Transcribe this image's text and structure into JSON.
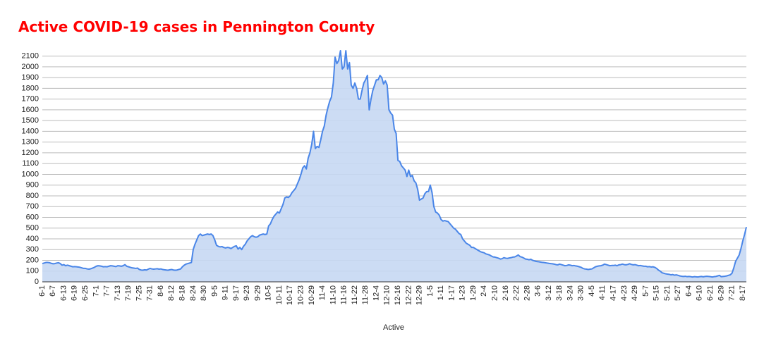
{
  "chart_data": {
    "type": "area",
    "title": "Active COVID-19 cases in Pennington County",
    "x_label": "Active",
    "color": "#4a86e8",
    "fill": "#c6d8f3",
    "grid": true,
    "ylim": [
      0,
      2150
    ],
    "yticks": [
      0,
      100,
      200,
      300,
      400,
      500,
      600,
      700,
      800,
      900,
      1000,
      1100,
      1200,
      1300,
      1400,
      1500,
      1600,
      1700,
      1800,
      1900,
      2000,
      2100
    ],
    "categories": [
      "6-1",
      null,
      null,
      null,
      null,
      null,
      "6-7",
      null,
      null,
      null,
      null,
      null,
      "6-13",
      null,
      null,
      null,
      null,
      null,
      "6-19",
      null,
      null,
      null,
      null,
      null,
      "6-25",
      null,
      null,
      null,
      null,
      null,
      "7-1",
      null,
      null,
      null,
      null,
      null,
      "7-7",
      null,
      null,
      null,
      null,
      null,
      "7-13",
      null,
      null,
      null,
      null,
      null,
      "7-19",
      null,
      null,
      null,
      null,
      null,
      "7-25",
      null,
      null,
      null,
      null,
      null,
      "7-31",
      null,
      null,
      null,
      null,
      null,
      "8-6",
      null,
      null,
      null,
      null,
      null,
      "8-12",
      null,
      null,
      null,
      null,
      null,
      "8-18",
      null,
      null,
      null,
      null,
      null,
      "8-24",
      null,
      null,
      null,
      null,
      null,
      "8-30",
      null,
      null,
      null,
      null,
      null,
      "9-5",
      null,
      null,
      null,
      null,
      null,
      "9-11",
      null,
      null,
      null,
      null,
      null,
      "9-17",
      null,
      null,
      null,
      null,
      null,
      "9-23",
      null,
      null,
      null,
      null,
      null,
      "9-29",
      null,
      null,
      null,
      null,
      null,
      "10-5",
      null,
      null,
      null,
      null,
      null,
      "10-11",
      null,
      null,
      null,
      null,
      null,
      "10-17",
      null,
      null,
      null,
      null,
      null,
      "10-23",
      null,
      null,
      null,
      null,
      null,
      "10-29",
      null,
      null,
      null,
      null,
      null,
      "11-4",
      null,
      null,
      null,
      null,
      null,
      "11-10",
      null,
      null,
      null,
      null,
      null,
      "11-16",
      null,
      null,
      null,
      null,
      null,
      "11-22",
      null,
      null,
      null,
      null,
      null,
      "11-28",
      null,
      null,
      null,
      null,
      null,
      "12-4",
      null,
      null,
      null,
      null,
      null,
      "12-10",
      null,
      null,
      null,
      null,
      null,
      "12-16",
      null,
      null,
      null,
      null,
      null,
      "12-22",
      null,
      null,
      null,
      null,
      null,
      "12-29",
      null,
      null,
      null,
      null,
      null,
      "1-5",
      null,
      null,
      null,
      null,
      null,
      "1-11",
      null,
      null,
      null,
      null,
      null,
      "1-17",
      null,
      null,
      null,
      null,
      null,
      "1-23",
      null,
      null,
      null,
      null,
      null,
      "1-29",
      null,
      null,
      null,
      null,
      null,
      "2-4",
      null,
      null,
      null,
      null,
      null,
      "2-10",
      null,
      null,
      null,
      null,
      null,
      "2-16",
      null,
      null,
      null,
      null,
      null,
      "2-22",
      null,
      null,
      null,
      null,
      null,
      "2-28",
      null,
      null,
      null,
      null,
      null,
      "3-6",
      null,
      null,
      null,
      null,
      null,
      "3-12",
      null,
      null,
      null,
      null,
      null,
      "3-18",
      null,
      null,
      null,
      null,
      null,
      "3-24",
      null,
      null,
      null,
      null,
      null,
      "3-30",
      null,
      null,
      null,
      null,
      null,
      "4-5",
      null,
      null,
      null,
      null,
      null,
      "4-11",
      null,
      null,
      null,
      null,
      null,
      "4-17",
      null,
      null,
      null,
      null,
      null,
      "4-23",
      null,
      null,
      null,
      null,
      null,
      "4-29",
      null,
      null,
      null,
      null,
      null,
      "5-7",
      null,
      null,
      null,
      null,
      null,
      "5-15",
      null,
      null,
      null,
      null,
      null,
      "5-21",
      null,
      null,
      null,
      null,
      null,
      "5-27",
      null,
      null,
      null,
      null,
      null,
      "6-4",
      null,
      null,
      null,
      null,
      null,
      "6-10",
      null,
      null,
      null,
      null,
      null,
      "6-21",
      null,
      null,
      null,
      null,
      null,
      "6-29",
      null,
      null,
      null,
      null,
      null,
      "7-21",
      null,
      null,
      null,
      null,
      null,
      "8-17",
      null,
      null
    ],
    "values": [
      170,
      175,
      180,
      180,
      178,
      172,
      168,
      170,
      175,
      178,
      170,
      155,
      160,
      150,
      155,
      150,
      145,
      140,
      142,
      140,
      138,
      135,
      130,
      125,
      125,
      120,
      118,
      122,
      128,
      135,
      145,
      150,
      148,
      145,
      140,
      142,
      140,
      145,
      150,
      148,
      145,
      142,
      150,
      148,
      145,
      150,
      160,
      145,
      140,
      135,
      130,
      128,
      125,
      128,
      115,
      110,
      108,
      112,
      110,
      118,
      125,
      120,
      118,
      120,
      122,
      118,
      120,
      115,
      112,
      110,
      108,
      112,
      115,
      110,
      108,
      110,
      115,
      120,
      140,
      155,
      165,
      170,
      175,
      180,
      300,
      350,
      390,
      430,
      445,
      430,
      435,
      440,
      445,
      440,
      445,
      430,
      390,
      340,
      330,
      325,
      328,
      320,
      315,
      320,
      318,
      310,
      320,
      330,
      335,
      305,
      320,
      300,
      330,
      350,
      380,
      400,
      420,
      430,
      420,
      415,
      420,
      435,
      440,
      445,
      440,
      445,
      520,
      540,
      580,
      610,
      630,
      650,
      640,
      680,
      720,
      780,
      790,
      785,
      800,
      830,
      850,
      870,
      910,
      950,
      1000,
      1060,
      1080,
      1050,
      1150,
      1200,
      1280,
      1400,
      1240,
      1260,
      1250,
      1320,
      1400,
      1450,
      1550,
      1620,
      1680,
      1720,
      1850,
      2090,
      2030,
      2060,
      2150,
      1980,
      2000,
      2150,
      1980,
      2040,
      1830,
      1800,
      1850,
      1800,
      1700,
      1700,
      1780,
      1850,
      1880,
      1920,
      1600,
      1700,
      1780,
      1830,
      1880,
      1880,
      1920,
      1900,
      1840,
      1870,
      1830,
      1600,
      1570,
      1550,
      1420,
      1380,
      1130,
      1120,
      1080,
      1060,
      1040,
      980,
      1040,
      980,
      990,
      940,
      920,
      860,
      760,
      770,
      780,
      820,
      840,
      840,
      900,
      830,
      700,
      650,
      640,
      620,
      580,
      565,
      570,
      565,
      560,
      540,
      520,
      500,
      490,
      470,
      450,
      440,
      400,
      380,
      360,
      350,
      340,
      320,
      320,
      310,
      300,
      290,
      280,
      275,
      270,
      260,
      255,
      250,
      240,
      232,
      230,
      225,
      220,
      212,
      215,
      225,
      220,
      218,
      222,
      225,
      230,
      232,
      240,
      250,
      235,
      230,
      222,
      212,
      210,
      205,
      210,
      200,
      195,
      190,
      188,
      185,
      182,
      180,
      178,
      175,
      172,
      170,
      168,
      165,
      160,
      158,
      165,
      160,
      155,
      150,
      152,
      158,
      155,
      150,
      152,
      148,
      145,
      140,
      135,
      125,
      120,
      118,
      115,
      118,
      120,
      130,
      140,
      145,
      148,
      150,
      155,
      165,
      160,
      155,
      150,
      152,
      152,
      155,
      150,
      158,
      160,
      165,
      160,
      158,
      162,
      168,
      162,
      158,
      160,
      155,
      150,
      152,
      148,
      145,
      145,
      140,
      142,
      138,
      140,
      135,
      125,
      110,
      100,
      85,
      80,
      75,
      72,
      70,
      65,
      68,
      62,
      65,
      60,
      55,
      52,
      50,
      52,
      48,
      50,
      48,
      45,
      48,
      47,
      45,
      48,
      50,
      47,
      50,
      52,
      50,
      48,
      45,
      48,
      50,
      55,
      60,
      48,
      50,
      52,
      55,
      60,
      65,
      80,
      130,
      190,
      220,
      250,
      310,
      380,
      440,
      510
    ]
  }
}
